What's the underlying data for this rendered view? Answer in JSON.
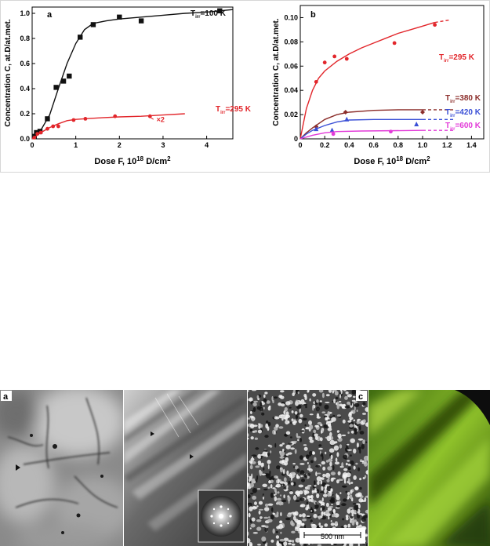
{
  "chart_data": [
    {
      "type": "scatter",
      "panel_label": "a",
      "xlabel": "Dose F, 10",
      "xlabel_sup": "18",
      "xlabel_unit": " D/cm",
      "xlabel_unit_sup": "2",
      "ylabel": "Concentration C, at.D/at.met.",
      "xlim": [
        0,
        4.6
      ],
      "ylim": [
        0,
        1.05
      ],
      "x_ticks": [
        "0",
        "1",
        "2",
        "3",
        "4"
      ],
      "y_ticks": [
        "0.0",
        "0.2",
        "0.4",
        "0.6",
        "0.8",
        "1.0"
      ],
      "annotation": "×2",
      "series": [
        {
          "name_main": "T",
          "name_sub": "irr",
          "name_rest": "=100 K",
          "color": "#111111",
          "marker": "square",
          "points": [
            [
              0.05,
              0.02
            ],
            [
              0.1,
              0.05
            ],
            [
              0.18,
              0.06
            ],
            [
              0.35,
              0.16
            ],
            [
              0.55,
              0.41
            ],
            [
              0.72,
              0.46
            ],
            [
              0.85,
              0.5
            ],
            [
              1.1,
              0.81
            ],
            [
              1.4,
              0.91
            ],
            [
              2.0,
              0.97
            ],
            [
              2.5,
              0.94
            ],
            [
              4.3,
              1.02
            ]
          ],
          "curve": [
            [
              0,
              0.0
            ],
            [
              0.2,
              0.07
            ],
            [
              0.4,
              0.19
            ],
            [
              0.6,
              0.4
            ],
            [
              0.8,
              0.6
            ],
            [
              1.0,
              0.76
            ],
            [
              1.2,
              0.87
            ],
            [
              1.4,
              0.92
            ],
            [
              1.7,
              0.94
            ],
            [
              2.0,
              0.955
            ],
            [
              2.5,
              0.97
            ],
            [
              3.0,
              0.985
            ],
            [
              3.5,
              1.0
            ],
            [
              4.0,
              1.01
            ],
            [
              4.6,
              1.03
            ]
          ]
        },
        {
          "name_main": "T",
          "name_sub": "irr",
          "name_rest": "=295 K",
          "color": "#e2262b",
          "marker": "circle",
          "points": [
            [
              0.05,
              0.01
            ],
            [
              0.12,
              0.04
            ],
            [
              0.2,
              0.05
            ],
            [
              0.35,
              0.08
            ],
            [
              0.48,
              0.1
            ],
            [
              0.6,
              0.1
            ],
            [
              0.95,
              0.15
            ],
            [
              1.22,
              0.16
            ],
            [
              1.9,
              0.18
            ],
            [
              2.7,
              0.18
            ]
          ],
          "curve": [
            [
              0,
              0.0
            ],
            [
              0.2,
              0.05
            ],
            [
              0.4,
              0.09
            ],
            [
              0.6,
              0.12
            ],
            [
              0.8,
              0.145
            ],
            [
              1.0,
              0.155
            ],
            [
              1.3,
              0.162
            ],
            [
              1.6,
              0.168
            ],
            [
              2.0,
              0.175
            ],
            [
              2.5,
              0.18
            ],
            [
              3.0,
              0.19
            ],
            [
              3.5,
              0.2
            ]
          ]
        }
      ]
    },
    {
      "type": "scatter",
      "panel_label": "b",
      "xlabel": "Dose F, 10",
      "xlabel_sup": "18",
      "xlabel_unit": " D/cm",
      "xlabel_unit_sup": "2",
      "ylabel": "Concentration C, at.D/at.met.",
      "xlim": [
        0,
        1.5
      ],
      "ylim": [
        0,
        0.11
      ],
      "x_ticks": [
        "0",
        "0.2",
        "0.4",
        "0.6",
        "0.8",
        "1.0",
        "1.2",
        "1.4"
      ],
      "y_ticks": [
        "0",
        "0.02",
        "0.04",
        "0.06",
        "0.08",
        "0.10"
      ],
      "series": [
        {
          "name_main": "T",
          "name_sub": "irr",
          "name_rest": "=295 K",
          "color": "#e2262b",
          "marker": "circle",
          "points": [
            [
              0.13,
              0.047
            ],
            [
              0.2,
              0.063
            ],
            [
              0.28,
              0.068
            ],
            [
              0.38,
              0.066
            ],
            [
              0.77,
              0.079
            ],
            [
              1.1,
              0.094
            ]
          ],
          "curve": [
            [
              0,
              0.0
            ],
            [
              0.05,
              0.025
            ],
            [
              0.1,
              0.04
            ],
            [
              0.15,
              0.05
            ],
            [
              0.2,
              0.056
            ],
            [
              0.3,
              0.064
            ],
            [
              0.4,
              0.07
            ],
            [
              0.5,
              0.075
            ],
            [
              0.6,
              0.079
            ],
            [
              0.7,
              0.083
            ],
            [
              0.8,
              0.087
            ],
            [
              0.9,
              0.09
            ],
            [
              1.0,
              0.093
            ],
            [
              1.1,
              0.096
            ]
          ],
          "dash_to": [
            1.22,
            0.098
          ]
        },
        {
          "name_main": "T",
          "name_sub": "irr",
          "name_rest": "=380 K",
          "color": "#8b2d2a",
          "marker": "diamond",
          "points": [
            [
              0.13,
              0.01
            ],
            [
              0.37,
              0.022
            ],
            [
              1.0,
              0.022
            ]
          ],
          "curve": [
            [
              0,
              0.0
            ],
            [
              0.05,
              0.005
            ],
            [
              0.1,
              0.009
            ],
            [
              0.2,
              0.016
            ],
            [
              0.3,
              0.02
            ],
            [
              0.4,
              0.022
            ],
            [
              0.6,
              0.0235
            ],
            [
              0.8,
              0.024
            ],
            [
              1.0,
              0.024
            ]
          ],
          "dash_to": [
            1.25,
            0.024
          ]
        },
        {
          "name_main": "T",
          "name_sub": "irr",
          "name_rest": "=420 K",
          "color": "#3a4fd6",
          "marker": "triangle",
          "points": [
            [
              0.13,
              0.008
            ],
            [
              0.26,
              0.007
            ],
            [
              0.38,
              0.016
            ],
            [
              0.95,
              0.012
            ]
          ],
          "curve": [
            [
              0,
              0.0
            ],
            [
              0.05,
              0.004
            ],
            [
              0.1,
              0.007
            ],
            [
              0.2,
              0.011
            ],
            [
              0.3,
              0.014
            ],
            [
              0.4,
              0.0155
            ],
            [
              0.6,
              0.016
            ],
            [
              1.0,
              0.016
            ]
          ],
          "dash_to": [
            1.25,
            0.016
          ]
        },
        {
          "name_main": "T",
          "name_sub": "irr",
          "name_rest": "=600 K",
          "color": "#e23ad8",
          "marker": "circle",
          "points": [
            [
              0.27,
              0.004
            ],
            [
              0.74,
              0.006
            ]
          ],
          "curve": [
            [
              0,
              0.0
            ],
            [
              0.1,
              0.003
            ],
            [
              0.2,
              0.005
            ],
            [
              0.3,
              0.006
            ],
            [
              0.5,
              0.0065
            ],
            [
              1.0,
              0.007
            ]
          ],
          "dash_to": [
            1.25,
            0.007
          ]
        }
      ]
    }
  ],
  "micrographs": {
    "panel_a_label": "a",
    "panel_c_label": "c",
    "scale_bar_label": "500 nm"
  }
}
